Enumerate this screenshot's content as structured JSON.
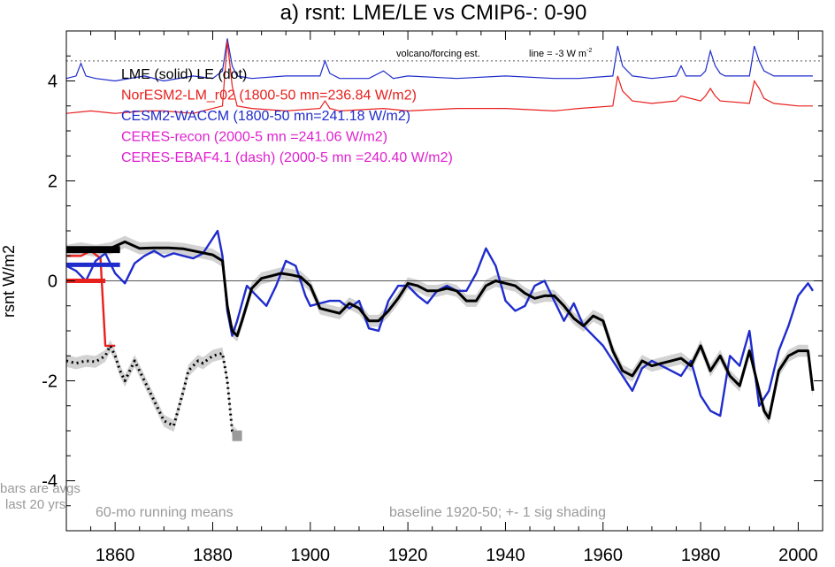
{
  "chart_data": {
    "type": "line",
    "title": "a) rsnt: LME/LE vs CMIP6-: 0-90",
    "xlabel": "",
    "ylabel": "rsnt W/m2",
    "xlim": [
      1850,
      2005
    ],
    "ylim": [
      -5,
      5
    ],
    "xticks": [
      1860,
      1880,
      1900,
      1920,
      1940,
      1960,
      1980,
      2000
    ],
    "yticks": [
      4,
      2,
      0,
      -2,
      -4
    ],
    "zero_line": true,
    "grid": false,
    "legend": [
      {
        "text": "LME (solid)   LE (dot)",
        "color": "#000000"
      },
      {
        "text": "NorESM2-LM_r02 (1800-50 mn=236.84 W/m2)",
        "color": "#e8201d"
      },
      {
        "text": "CESM2-WACCM (1800-50 mn=241.18 W/m2)",
        "color": "#1f2ccc"
      },
      {
        "text": "CERES-recon (2000-5 mn =241.06 W/m2)",
        "color": "#e020d0"
      },
      {
        "text": "CERES-EBAF4.1 (dash) (2000-5 mn =240.40 W/m2)",
        "color": "#e020d0"
      }
    ],
    "annotations": {
      "volcano": "volcano/forcing est.",
      "line_eq": "line = -3 W m",
      "line_eq_sup": "-2",
      "bars_note_1": "bars are avgs",
      "bars_note_2": "last 20 yrs",
      "running": "60-mo running means",
      "baseline": "baseline 1920-50; +- 1 sig shading"
    },
    "reference_line_y": 4.4,
    "series": [
      {
        "name": "LME (solid)",
        "color": "#000000",
        "style": "solid",
        "x": [
          1850,
          1853,
          1856,
          1859,
          1862,
          1865,
          1868,
          1871,
          1874,
          1877,
          1880,
          1882,
          1883,
          1884,
          1885,
          1886,
          1888,
          1890,
          1892,
          1894,
          1896,
          1898,
          1900,
          1902,
          1904,
          1906,
          1908,
          1910,
          1912,
          1914,
          1916,
          1918,
          1920,
          1922,
          1924,
          1926,
          1928,
          1930,
          1932,
          1934,
          1936,
          1938,
          1940,
          1942,
          1944,
          1946,
          1948,
          1950,
          1952,
          1954,
          1956,
          1958,
          1960,
          1962,
          1964,
          1966,
          1968,
          1970,
          1972,
          1974,
          1976,
          1978,
          1980,
          1982,
          1984,
          1986,
          1988,
          1990,
          1992,
          1993,
          1994,
          1996,
          1998,
          2000,
          2002,
          2003
        ],
        "y": [
          0.6,
          0.65,
          0.6,
          0.65,
          0.78,
          0.65,
          0.66,
          0.66,
          0.64,
          0.58,
          0.52,
          0.4,
          -0.5,
          -1.0,
          -1.1,
          -0.8,
          -0.15,
          0.05,
          0.1,
          0.15,
          0.12,
          0.08,
          -0.1,
          -0.55,
          -0.6,
          -0.65,
          -0.45,
          -0.55,
          -0.8,
          -0.8,
          -0.6,
          -0.35,
          -0.05,
          -0.1,
          -0.2,
          -0.2,
          -0.15,
          -0.2,
          -0.4,
          -0.4,
          -0.1,
          0.0,
          -0.05,
          -0.1,
          -0.25,
          -0.35,
          -0.3,
          -0.3,
          -0.5,
          -0.75,
          -0.9,
          -0.7,
          -0.8,
          -1.4,
          -1.8,
          -1.9,
          -1.6,
          -1.7,
          -1.65,
          -1.6,
          -1.55,
          -1.7,
          -1.3,
          -1.8,
          -1.5,
          -1.9,
          -2.1,
          -1.4,
          -2.2,
          -2.6,
          -2.75,
          -1.8,
          -1.5,
          -1.4,
          -1.4,
          -2.2
        ]
      },
      {
        "name": "LE (dot)",
        "color": "#000000",
        "style": "dot",
        "x": [
          1850,
          1852,
          1854,
          1856,
          1858,
          1859,
          1860,
          1861,
          1862,
          1864,
          1866,
          1868,
          1870,
          1872,
          1874,
          1875,
          1877,
          1878,
          1880,
          1882,
          1883,
          1884,
          1885
        ],
        "y": [
          -1.6,
          -1.65,
          -1.6,
          -1.62,
          -1.5,
          -1.3,
          -1.5,
          -1.8,
          -2.0,
          -1.6,
          -2.0,
          -2.4,
          -2.8,
          -2.9,
          -2.2,
          -1.8,
          -1.6,
          -1.65,
          -1.5,
          -1.45,
          -2.0,
          -3.0,
          -3.1
        ]
      },
      {
        "name": "NorESM2-LM_r02",
        "color": "#e8201d",
        "style": "solid",
        "x": [
          1850,
          1853,
          1855,
          1857,
          1858,
          1859,
          1860
        ],
        "y": [
          0.5,
          0.5,
          0.6,
          0.45,
          -1.3,
          -1.3,
          -1.3
        ]
      },
      {
        "name": "CESM2-WACCM",
        "color": "#1f2ccc",
        "style": "solid",
        "x": [
          1850,
          1852,
          1854,
          1856,
          1858,
          1860,
          1862,
          1864,
          1866,
          1868,
          1870,
          1872,
          1874,
          1876,
          1878,
          1880,
          1881,
          1882,
          1883,
          1884,
          1885,
          1887,
          1889,
          1891,
          1893,
          1895,
          1897,
          1899,
          1900,
          1902,
          1904,
          1906,
          1908,
          1910,
          1912,
          1914,
          1916,
          1918,
          1920,
          1922,
          1924,
          1926,
          1928,
          1930,
          1932,
          1934,
          1936,
          1938,
          1940,
          1942,
          1944,
          1946,
          1948,
          1950,
          1952,
          1954,
          1956,
          1958,
          1960,
          1962,
          1964,
          1966,
          1968,
          1970,
          1972,
          1974,
          1976,
          1978,
          1980,
          1982,
          1984,
          1986,
          1988,
          1990,
          1992,
          1994,
          1996,
          1998,
          2000,
          2002,
          2003
        ],
        "y": [
          0.3,
          0.2,
          0.0,
          0.4,
          0.55,
          0.15,
          -0.05,
          0.35,
          0.5,
          0.6,
          0.48,
          0.55,
          0.5,
          0.45,
          0.55,
          0.85,
          1.0,
          0.5,
          -0.6,
          -1.1,
          -0.8,
          -0.1,
          -0.3,
          -0.5,
          -0.1,
          0.4,
          0.3,
          -0.3,
          -0.5,
          -0.45,
          -0.4,
          -0.4,
          -0.55,
          -0.4,
          -0.95,
          -1.0,
          -0.4,
          -0.1,
          -0.1,
          -0.3,
          -0.45,
          -0.2,
          -0.1,
          -0.2,
          -0.2,
          0.15,
          0.65,
          0.3,
          -0.4,
          -0.6,
          -0.5,
          -0.1,
          0.0,
          -0.4,
          -0.8,
          -0.45,
          -0.9,
          -1.1,
          -1.3,
          -1.6,
          -1.9,
          -2.2,
          -1.75,
          -1.6,
          -1.7,
          -1.8,
          -1.9,
          -1.6,
          -2.3,
          -2.6,
          -2.7,
          -1.5,
          -1.7,
          -1.0,
          -2.5,
          -2.2,
          -1.4,
          -0.9,
          -0.3,
          -0.05,
          -0.2
        ]
      }
    ],
    "shading": {
      "color": "#d2d2d2",
      "sigma": 0.12
    },
    "bars": [
      {
        "series": "LME",
        "color": "#000000",
        "x": [
          1850,
          1861
        ],
        "y": 0.65
      },
      {
        "series": "LE",
        "color": "#000000",
        "x": [
          1850,
          1861
        ],
        "y": 0.6
      },
      {
        "series": "CESM2-WACCM",
        "color": "#1f2ccc",
        "x": [
          1850,
          1861
        ],
        "y": 0.32
      },
      {
        "series": "NorESM2-LM_r02",
        "color": "#e8201d",
        "x": [
          1850,
          1858
        ],
        "y": 0.0
      },
      {
        "series": "LE-shade",
        "color": "#9a9a9a",
        "x": [
          1884,
          1886
        ],
        "y": -3.1
      }
    ],
    "forcing_series": [
      {
        "name": "forcing-blue",
        "color": "#1f2ccc",
        "x": [
          1850,
          1852,
          1853,
          1854,
          1856,
          1860,
          1866,
          1870,
          1876,
          1880,
          1882,
          1883,
          1884,
          1885,
          1888,
          1895,
          1902,
          1903,
          1904,
          1906,
          1912,
          1915,
          1917,
          1920,
          1930,
          1940,
          1950,
          1955,
          1962,
          1963,
          1964,
          1966,
          1970,
          1975,
          1976,
          1977,
          1980,
          1981,
          1982,
          1983,
          1984,
          1985,
          1990,
          1991,
          1992,
          1993,
          1995,
          2000,
          2003
        ],
        "y": [
          4.05,
          4.1,
          4.35,
          4.1,
          4.05,
          4.0,
          4.1,
          4.0,
          4.1,
          4.05,
          4.2,
          4.85,
          4.3,
          4.1,
          4.05,
          4.1,
          4.1,
          4.4,
          4.15,
          4.05,
          4.05,
          4.2,
          4.05,
          4.1,
          4.05,
          4.1,
          4.05,
          4.05,
          4.1,
          4.7,
          4.3,
          4.1,
          4.05,
          4.1,
          4.3,
          4.1,
          4.1,
          4.2,
          4.6,
          4.3,
          4.15,
          4.1,
          4.1,
          4.7,
          4.4,
          4.2,
          4.1,
          4.1,
          4.1
        ]
      },
      {
        "name": "forcing-red",
        "color": "#e8201d",
        "x": [
          1850,
          1855,
          1860,
          1866,
          1870,
          1876,
          1880,
          1882,
          1883,
          1884,
          1885,
          1888,
          1895,
          1902,
          1903,
          1904,
          1906,
          1915,
          1920,
          1930,
          1940,
          1950,
          1955,
          1962,
          1963,
          1964,
          1966,
          1970,
          1975,
          1976,
          1980,
          1981,
          1982,
          1983,
          1984,
          1990,
          1991,
          1992,
          1993,
          1995,
          2000,
          2003
        ],
        "y": [
          3.35,
          3.4,
          3.35,
          3.4,
          3.4,
          3.35,
          3.45,
          3.5,
          4.8,
          3.9,
          3.5,
          3.45,
          3.4,
          3.45,
          3.6,
          3.45,
          3.4,
          3.45,
          3.4,
          3.45,
          3.45,
          3.4,
          3.45,
          3.5,
          4.1,
          3.8,
          3.6,
          3.55,
          3.6,
          3.7,
          3.6,
          3.7,
          3.85,
          3.7,
          3.6,
          3.55,
          4.0,
          3.85,
          3.65,
          3.55,
          3.5,
          3.5
        ]
      }
    ]
  }
}
